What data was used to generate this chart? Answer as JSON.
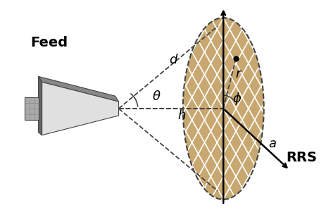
{
  "fig_width": 4.64,
  "fig_height": 3.12,
  "dpi": 100,
  "background_color": "#ffffff",
  "ellipse_fill": "#c8a870",
  "ellipse_edge_color": "#444444",
  "grid_line_color": "#ffffff",
  "axis_color": "#000000",
  "dashed_color": "#444444",
  "feed_outer_color": "#888888",
  "feed_inner_color": "#dddddd",
  "feed_box_color": "#aaaaaa",
  "label_feed": "Feed",
  "label_RRS": "RRS",
  "label_d": "$d$",
  "label_h": "$h$",
  "label_theta": "$\\theta$",
  "label_r": "$r$",
  "label_phi": "$\\phi$",
  "label_a": "$a$"
}
